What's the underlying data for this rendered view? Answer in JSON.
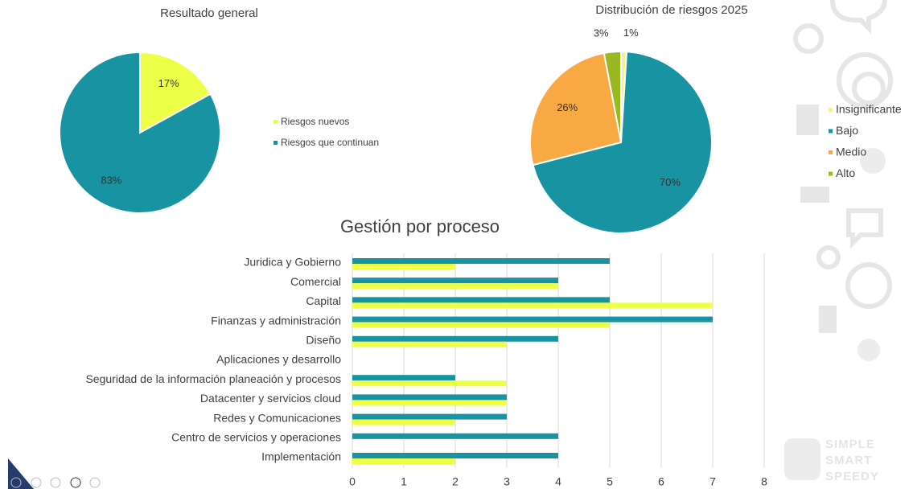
{
  "chart_data": [
    {
      "type": "pie",
      "title": "Resultado general",
      "categories": [
        "Riesgos nuevos",
        "Riesgos que continuan"
      ],
      "values": [
        17,
        83
      ],
      "value_labels": [
        "17%",
        "83%"
      ],
      "colors": [
        "#eeff47",
        "#1893a1"
      ],
      "legend": "right"
    },
    {
      "type": "pie",
      "title": "Distribución de riesgos 2025",
      "categories": [
        "Insignificante",
        "Bajo",
        "Medio",
        "Alto"
      ],
      "values": [
        1,
        70,
        26,
        3
      ],
      "value_labels": [
        "1%",
        "70%",
        "26%",
        "3%"
      ],
      "colors": [
        "#f4f19c",
        "#1893a1",
        "#f8a944",
        "#99b822"
      ],
      "legend": "right"
    },
    {
      "type": "hbar",
      "title": "Gestión por proceso",
      "categories": [
        "Juridica y Gobierno",
        "Comercial",
        "Capital",
        "Finanzas y administración",
        "Diseño",
        "Aplicaciones y desarrollo",
        "Seguridad de la información planeación y procesos",
        "Datacenter y servicios cloud",
        "Redes y Comunicaciones",
        "Centro de servicios y operaciones",
        "Implementación"
      ],
      "series": [
        {
          "color": "#1893a1",
          "values": [
            5,
            4,
            5,
            7,
            4,
            null,
            2,
            3,
            3,
            4,
            4
          ]
        },
        {
          "color": "#eeff47",
          "values": [
            2,
            4,
            7,
            5,
            3,
            null,
            3,
            3,
            2,
            null,
            2
          ]
        }
      ],
      "xlim": [
        0,
        8
      ],
      "xticks": [
        0,
        1,
        2,
        3,
        4,
        5,
        6,
        7,
        8
      ],
      "grid": true
    }
  ],
  "logo": [
    "SIMPLE",
    "SMART",
    "SPEEDY"
  ]
}
